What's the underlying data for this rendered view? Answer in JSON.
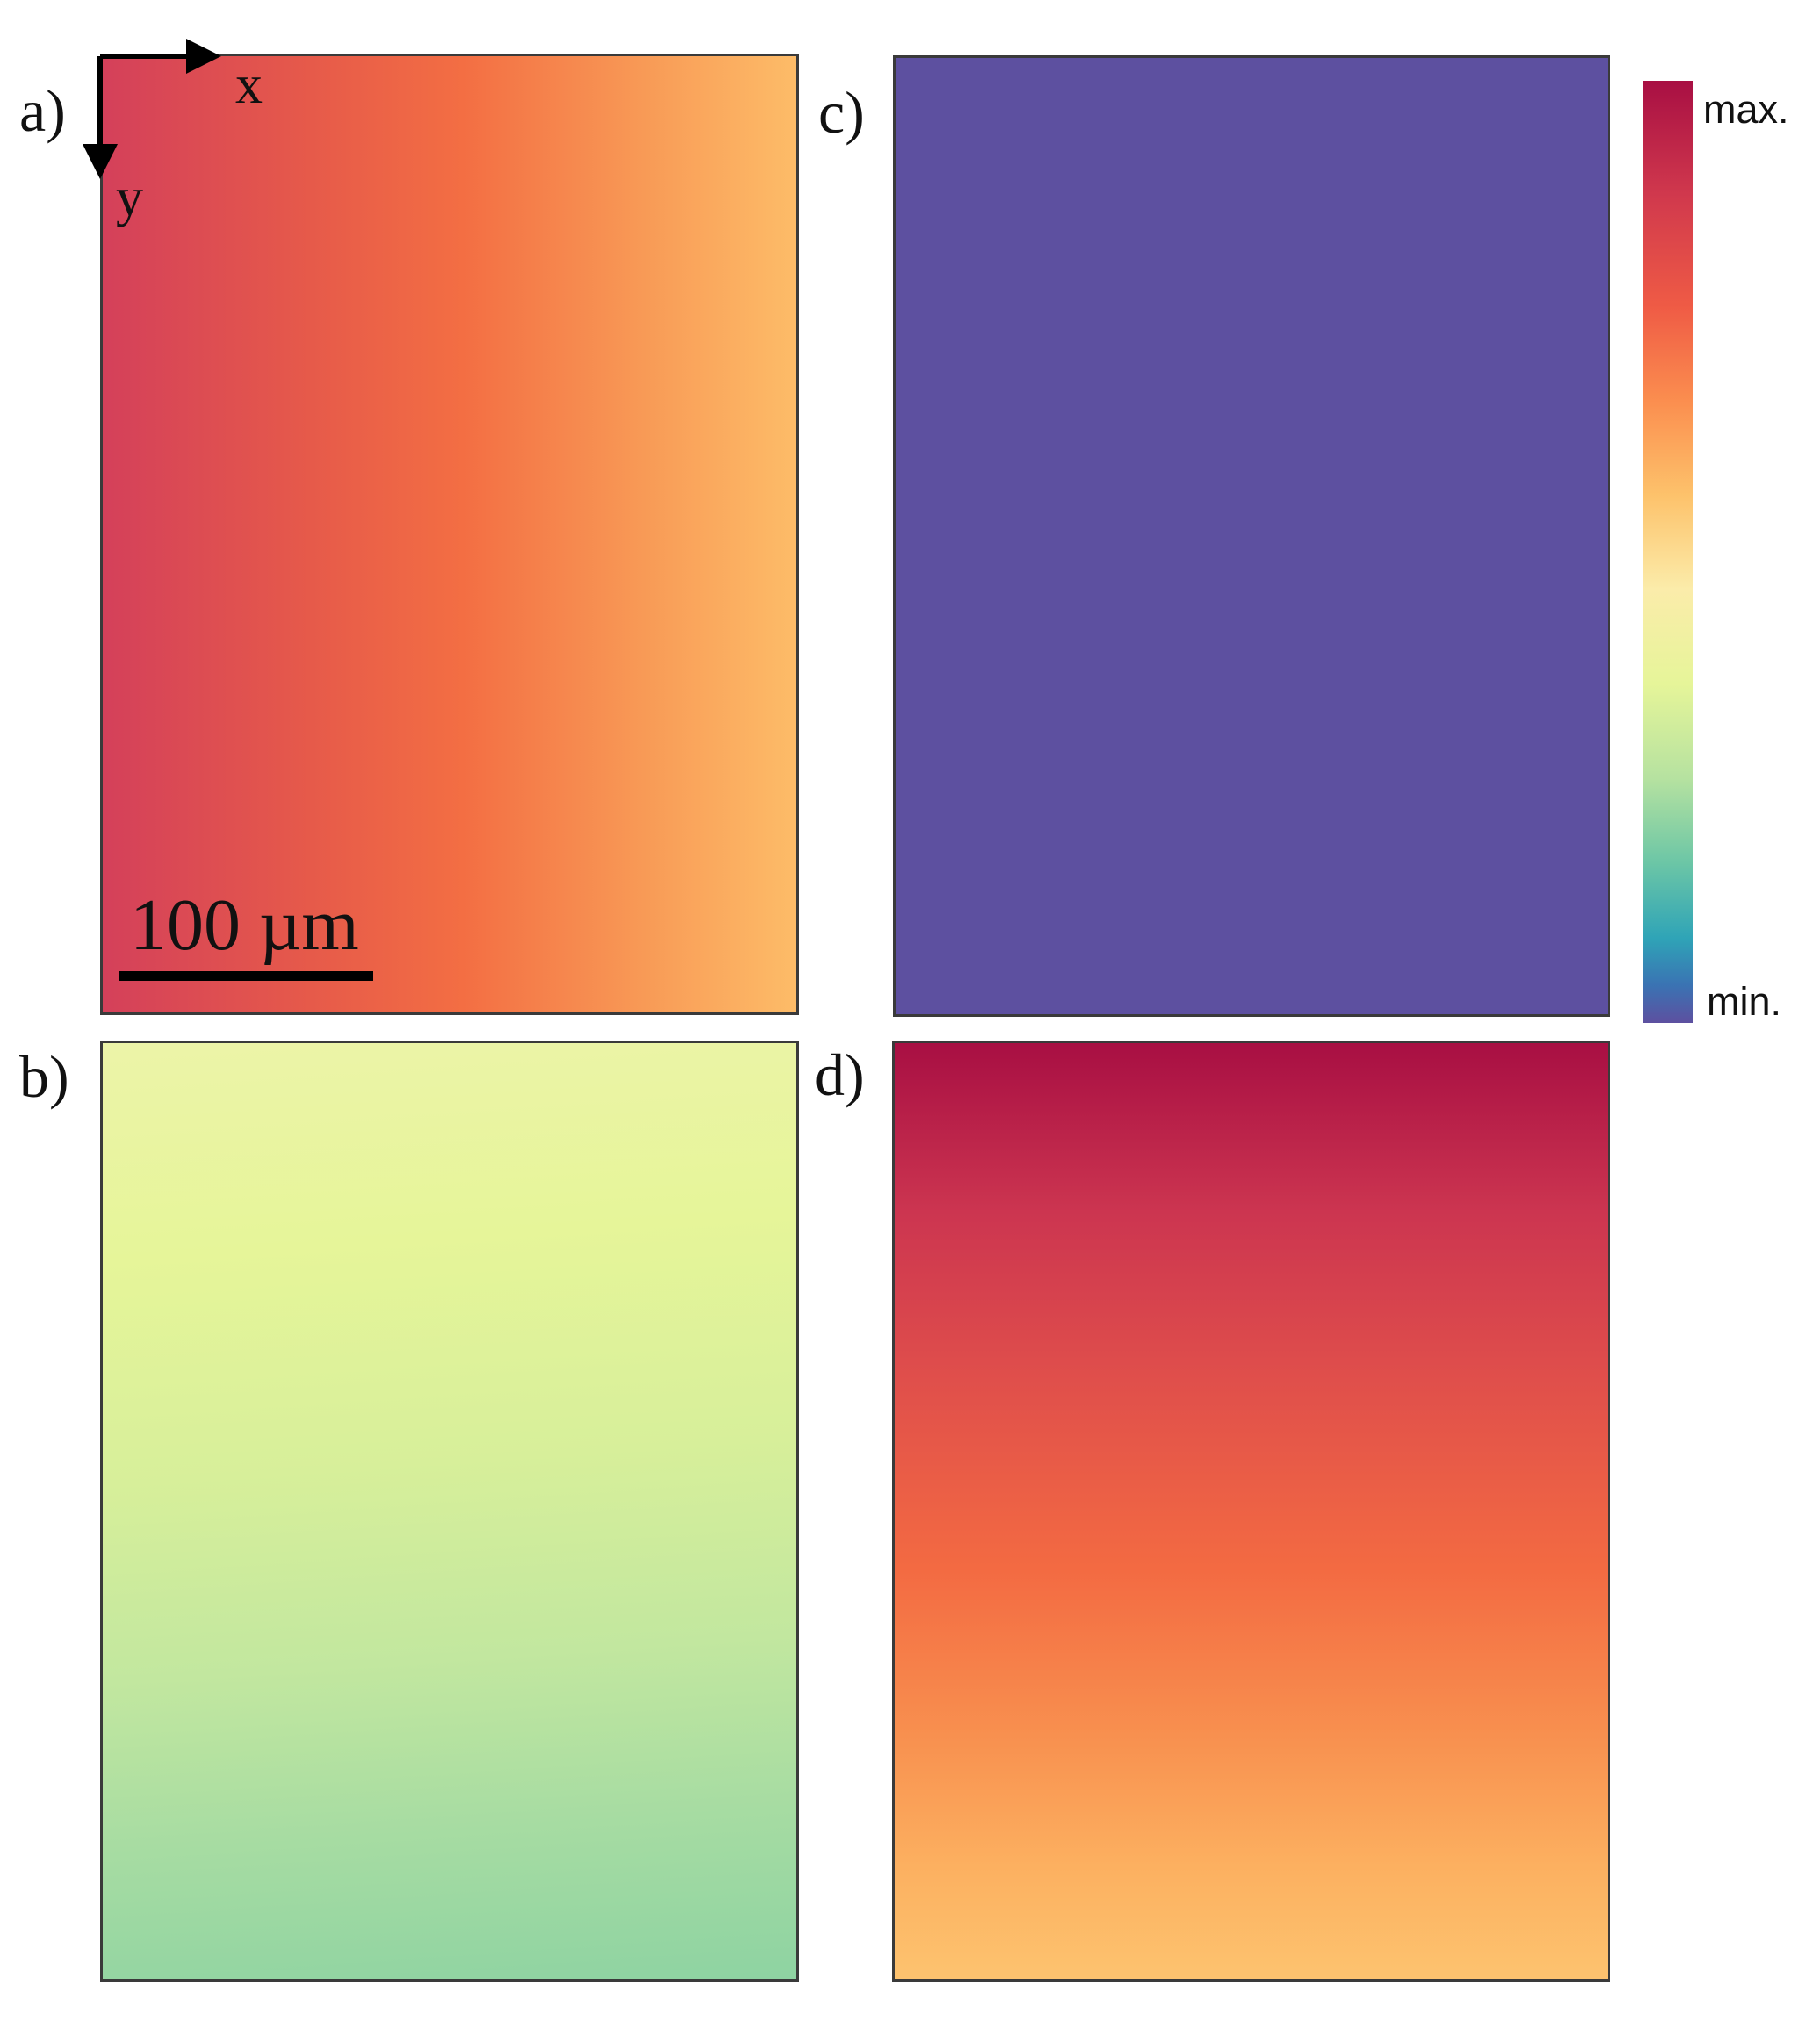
{
  "panels": [
    {
      "id": "a",
      "label": "a)"
    },
    {
      "id": "b",
      "label": "b)"
    },
    {
      "id": "c",
      "label": "c)"
    },
    {
      "id": "d",
      "label": "d)"
    }
  ],
  "axes": {
    "x_label": "x",
    "y_label": "y"
  },
  "scale_bar": {
    "text": "100 µm"
  },
  "colorbar": {
    "max_label": "max.",
    "min_label": "min.",
    "colors": [
      "#a80f43",
      "#d0384d",
      "#ef5b45",
      "#fb8e4f",
      "#fdc26b",
      "#fbecaa",
      "#e6f599",
      "#b6e2a0",
      "#6cc6a6",
      "#2fa4b7",
      "#3a73b3",
      "#5d50a0"
    ]
  }
}
